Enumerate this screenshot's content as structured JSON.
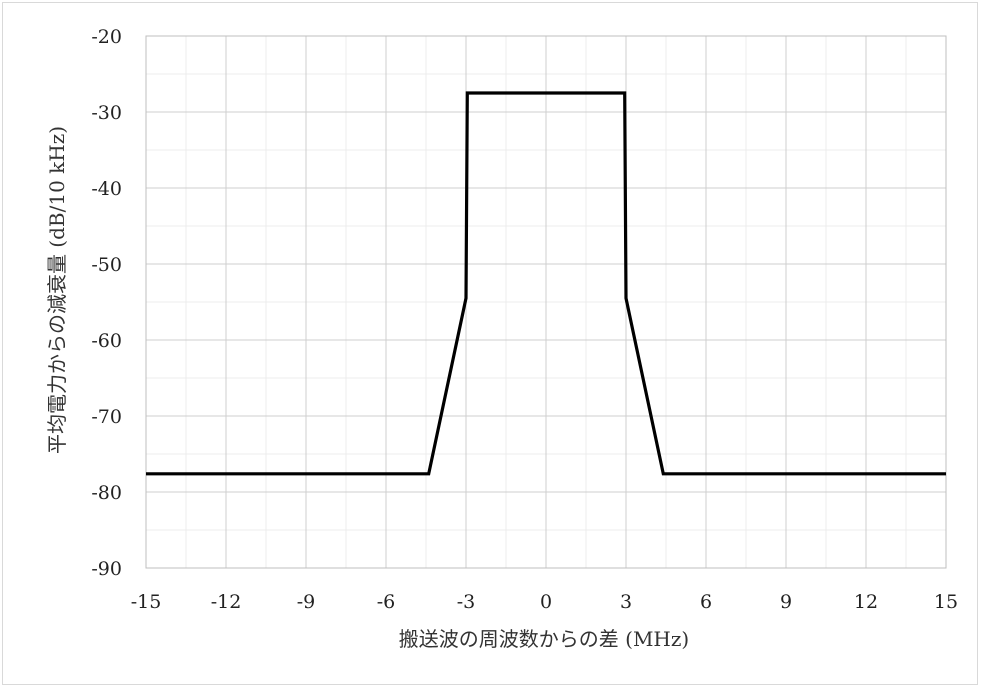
{
  "chart_data": {
    "type": "line",
    "title": "",
    "xlabel": "搬送波の周波数からの差 (MHz)",
    "ylabel": "平均電力からの減衰量 (dB/10 kHz)",
    "xlim": [
      -15,
      15
    ],
    "ylim": [
      -90,
      -20
    ],
    "xticks": [
      -15,
      -12,
      -9,
      -6,
      -3,
      0,
      3,
      6,
      9,
      12,
      15
    ],
    "yticks": [
      -20,
      -30,
      -40,
      -50,
      -60,
      -70,
      -80,
      -90
    ],
    "grid": true,
    "grid_minor": true,
    "legend": "none",
    "series": [
      {
        "name": "",
        "color": "#000000",
        "x": [
          -15,
          -4.4,
          -3,
          -2.95,
          2.95,
          3,
          4.4,
          15
        ],
        "y": [
          -77.6,
          -77.6,
          -54.5,
          -27.5,
          -27.5,
          -54.5,
          -77.6,
          -77.6
        ]
      }
    ]
  }
}
